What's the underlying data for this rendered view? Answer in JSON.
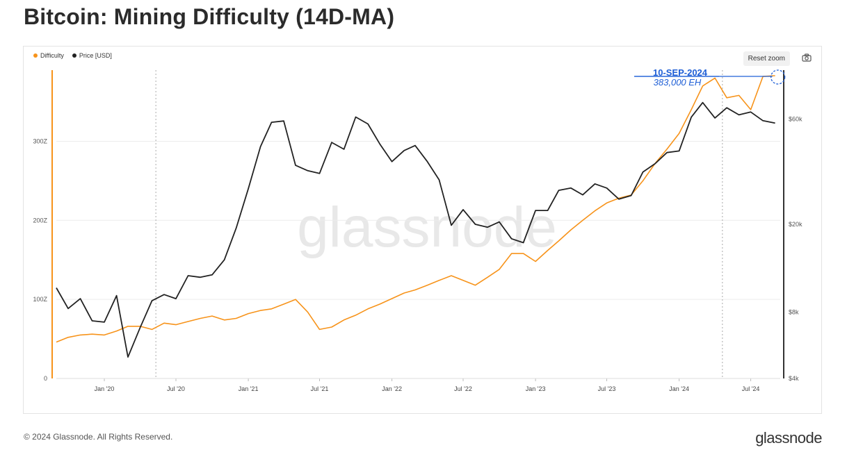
{
  "header": {
    "title": "Bitcoin: Mining Difficulty (14D-MA)"
  },
  "toolbar": {
    "reset_label": "Reset zoom"
  },
  "footer": {
    "copyright": "© 2024 Glassnode. All Rights Reserved.",
    "brand": "glassnode"
  },
  "watermark": "glassnode",
  "colors": {
    "difficulty": "#f7931a",
    "price": "#222222",
    "annotation": "#1f5fd6"
  },
  "chart_data": {
    "type": "line",
    "title": "Bitcoin: Mining Difficulty (14D-MA)",
    "legend": [
      "Difficulty",
      "Price [USD]"
    ],
    "legend_position": "top-left",
    "x_ticks": [
      "Jan '20",
      "Jul '20",
      "Jan '21",
      "Jul '21",
      "Jan '22",
      "Jul '22",
      "Jan '23",
      "Jul '23",
      "Jan '24",
      "Jul '24"
    ],
    "x_range": [
      "2019-09-01",
      "2024-09-14"
    ],
    "y_left": {
      "label": "",
      "ticks": [
        "0",
        "100Z",
        "200Z",
        "300Z"
      ],
      "range": [
        0,
        390
      ]
    },
    "y_right": {
      "label": "",
      "scale": "log",
      "ticks": [
        "$4k",
        "$8k",
        "$20k",
        "$60k"
      ],
      "values": [
        4000,
        8000,
        20000,
        60000
      ],
      "range": [
        4000,
        100000
      ]
    },
    "grid": "horizontal",
    "annotation": {
      "date_label": "10-SEP-2024",
      "value_label": "383,000 EH"
    },
    "series": [
      {
        "name": "Difficulty",
        "axis": "left",
        "points": [
          [
            "2019-09-01",
            46
          ],
          [
            "2019-10-01",
            52
          ],
          [
            "2019-11-01",
            55
          ],
          [
            "2019-12-01",
            56
          ],
          [
            "2020-01-01",
            55
          ],
          [
            "2020-02-01",
            60
          ],
          [
            "2020-03-01",
            66
          ],
          [
            "2020-04-01",
            66
          ],
          [
            "2020-05-01",
            62
          ],
          [
            "2020-06-01",
            70
          ],
          [
            "2020-07-01",
            68
          ],
          [
            "2020-08-01",
            72
          ],
          [
            "2020-09-01",
            76
          ],
          [
            "2020-10-01",
            79
          ],
          [
            "2020-11-01",
            74
          ],
          [
            "2020-12-01",
            76
          ],
          [
            "2021-01-01",
            82
          ],
          [
            "2021-02-01",
            86
          ],
          [
            "2021-03-01",
            88
          ],
          [
            "2021-04-01",
            94
          ],
          [
            "2021-05-01",
            100
          ],
          [
            "2021-06-01",
            84
          ],
          [
            "2021-07-01",
            62
          ],
          [
            "2021-08-01",
            65
          ],
          [
            "2021-09-01",
            74
          ],
          [
            "2021-10-01",
            80
          ],
          [
            "2021-11-01",
            88
          ],
          [
            "2021-12-01",
            94
          ],
          [
            "2022-01-01",
            101
          ],
          [
            "2022-02-01",
            108
          ],
          [
            "2022-03-01",
            112
          ],
          [
            "2022-04-01",
            118
          ],
          [
            "2022-05-01",
            124
          ],
          [
            "2022-06-01",
            130
          ],
          [
            "2022-07-01",
            124
          ],
          [
            "2022-08-01",
            118
          ],
          [
            "2022-09-01",
            128
          ],
          [
            "2022-10-01",
            138
          ],
          [
            "2022-11-01",
            158
          ],
          [
            "2022-12-01",
            158
          ],
          [
            "2023-01-01",
            148
          ],
          [
            "2023-02-01",
            162
          ],
          [
            "2023-03-01",
            174
          ],
          [
            "2023-04-01",
            188
          ],
          [
            "2023-05-01",
            200
          ],
          [
            "2023-06-01",
            212
          ],
          [
            "2023-07-01",
            222
          ],
          [
            "2023-08-01",
            228
          ],
          [
            "2023-09-01",
            232
          ],
          [
            "2023-10-01",
            250
          ],
          [
            "2023-11-01",
            272
          ],
          [
            "2023-12-01",
            290
          ],
          [
            "2024-01-01",
            310
          ],
          [
            "2024-02-01",
            340
          ],
          [
            "2024-03-01",
            370
          ],
          [
            "2024-04-01",
            380
          ],
          [
            "2024-05-01",
            355
          ],
          [
            "2024-06-01",
            358
          ],
          [
            "2024-07-01",
            340
          ],
          [
            "2024-08-01",
            382
          ],
          [
            "2024-09-01",
            383
          ]
        ]
      },
      {
        "name": "Price [USD]",
        "axis": "right",
        "points": [
          [
            "2019-09-01",
            10300
          ],
          [
            "2019-10-01",
            8300
          ],
          [
            "2019-11-01",
            9200
          ],
          [
            "2019-12-01",
            7300
          ],
          [
            "2020-01-01",
            7200
          ],
          [
            "2020-02-01",
            9500
          ],
          [
            "2020-03-01",
            5000
          ],
          [
            "2020-04-01",
            6800
          ],
          [
            "2020-05-01",
            9000
          ],
          [
            "2020-06-01",
            9600
          ],
          [
            "2020-07-01",
            9200
          ],
          [
            "2020-08-01",
            11700
          ],
          [
            "2020-09-01",
            11500
          ],
          [
            "2020-10-01",
            11800
          ],
          [
            "2020-11-01",
            13800
          ],
          [
            "2020-12-01",
            19200
          ],
          [
            "2021-01-01",
            29000
          ],
          [
            "2021-02-01",
            45000
          ],
          [
            "2021-03-01",
            58000
          ],
          [
            "2021-04-01",
            58800
          ],
          [
            "2021-05-01",
            37000
          ],
          [
            "2021-06-01",
            35000
          ],
          [
            "2021-07-01",
            34000
          ],
          [
            "2021-08-01",
            47000
          ],
          [
            "2021-09-01",
            43800
          ],
          [
            "2021-10-01",
            61300
          ],
          [
            "2021-11-01",
            57000
          ],
          [
            "2021-12-01",
            46300
          ],
          [
            "2022-01-01",
            38500
          ],
          [
            "2022-02-01",
            43200
          ],
          [
            "2022-03-01",
            45500
          ],
          [
            "2022-04-01",
            38500
          ],
          [
            "2022-05-01",
            31800
          ],
          [
            "2022-06-01",
            19800
          ],
          [
            "2022-07-01",
            23300
          ],
          [
            "2022-08-01",
            20000
          ],
          [
            "2022-09-01",
            19400
          ],
          [
            "2022-10-01",
            20500
          ],
          [
            "2022-11-01",
            17200
          ],
          [
            "2022-12-01",
            16500
          ],
          [
            "2023-01-01",
            23100
          ],
          [
            "2023-02-01",
            23100
          ],
          [
            "2023-03-01",
            28500
          ],
          [
            "2023-04-01",
            29200
          ],
          [
            "2023-05-01",
            27200
          ],
          [
            "2023-06-01",
            30500
          ],
          [
            "2023-07-01",
            29200
          ],
          [
            "2023-08-01",
            26000
          ],
          [
            "2023-09-01",
            27000
          ],
          [
            "2023-10-01",
            34500
          ],
          [
            "2023-11-01",
            37700
          ],
          [
            "2023-12-01",
            42300
          ],
          [
            "2024-01-01",
            43000
          ],
          [
            "2024-02-01",
            61200
          ],
          [
            "2024-03-01",
            71300
          ],
          [
            "2024-04-01",
            60700
          ],
          [
            "2024-05-01",
            67500
          ],
          [
            "2024-06-01",
            62700
          ],
          [
            "2024-07-01",
            64600
          ],
          [
            "2024-08-01",
            59000
          ],
          [
            "2024-09-01",
            57500
          ]
        ]
      }
    ]
  }
}
